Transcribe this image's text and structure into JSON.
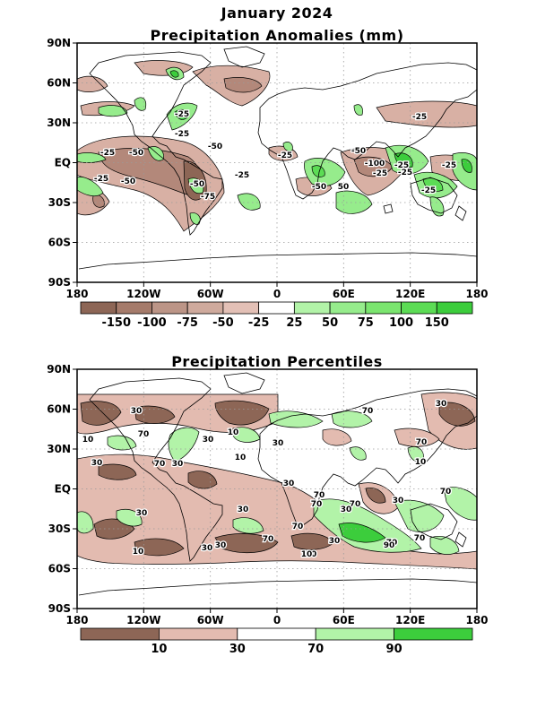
{
  "title": "January 2024",
  "panels": [
    {
      "id": "anomalies",
      "title": "Precipitation Anomalies (mm)",
      "colorbar": {
        "colors": [
          "#8d6656",
          "#a57b6b",
          "#bc9587",
          "#cfaa9d",
          "#e3c0b6",
          "#ffffff",
          "#b2f3a8",
          "#96ec8c",
          "#7be56f",
          "#5cdc55",
          "#3ccd3c"
        ],
        "labels": [
          "-150",
          "-100",
          "-75",
          "-50",
          "-25",
          "25",
          "50",
          "75",
          "100",
          "150"
        ]
      },
      "contour_labels": [
        "-25",
        "-25",
        "-50",
        "-25",
        "-50",
        "-25",
        "-50",
        "-25",
        "-75",
        "-25",
        "-25",
        "-50",
        "-50",
        "-25",
        "-100",
        "-25",
        "-25",
        "-25",
        "-25",
        "-50",
        "50"
      ]
    },
    {
      "id": "percentiles",
      "title": "Precipitation Percentiles",
      "colorbar": {
        "colors": [
          "#8d6656",
          "#e3bbb0",
          "#ffffff",
          "#b2f3a8",
          "#3ccd3c"
        ],
        "labels": [
          "10",
          "30",
          "70",
          "90"
        ]
      },
      "contour_labels": [
        "30",
        "10",
        "70",
        "30",
        "10",
        "70",
        "30",
        "30",
        "70",
        "30",
        "70",
        "10",
        "30",
        "70",
        "10",
        "70",
        "30",
        "30",
        "70",
        "70",
        "30",
        "30",
        "30",
        "70",
        "30",
        "10",
        "30",
        "70",
        "10",
        "30",
        "70",
        "90",
        "70",
        "30"
      ]
    }
  ],
  "axes": {
    "lat_ticks": [
      "90N",
      "60N",
      "30N",
      "EQ",
      "30S",
      "60S",
      "90S"
    ],
    "lon_ticks": [
      "180",
      "120W",
      "60W",
      "0",
      "60E",
      "120E",
      "180"
    ]
  }
}
